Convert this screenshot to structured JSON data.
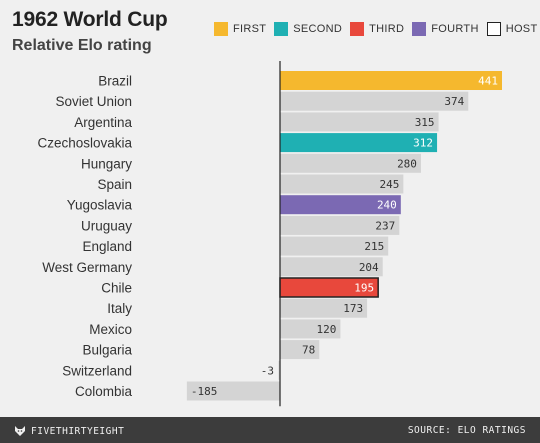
{
  "header": {
    "title": "1962 World Cup",
    "subtitle": "Relative Elo rating"
  },
  "legend": [
    {
      "label": "FIRST",
      "color": "#f5b82e",
      "outline": false
    },
    {
      "label": "SECOND",
      "color": "#1fb0b3",
      "outline": false
    },
    {
      "label": "THIRD",
      "color": "#e8483c",
      "outline": false
    },
    {
      "label": "FOURTH",
      "color": "#7b69b3",
      "outline": false
    },
    {
      "label": "HOST",
      "color": "#ffffff",
      "outline": true
    }
  ],
  "chart_data": {
    "type": "bar",
    "orientation": "horizontal",
    "title": "1962 World Cup",
    "subtitle": "Relative Elo rating",
    "categories": [
      "Brazil",
      "Soviet Union",
      "Argentina",
      "Czechoslovakia",
      "Hungary",
      "Spain",
      "Yugoslavia",
      "Uruguay",
      "England",
      "West Germany",
      "Chile",
      "Italy",
      "Mexico",
      "Bulgaria",
      "Switzerland",
      "Colombia"
    ],
    "values": [
      441,
      374,
      315,
      312,
      280,
      245,
      240,
      237,
      215,
      204,
      195,
      173,
      120,
      78,
      -3,
      -185
    ],
    "labels": [
      "441",
      "374",
      "315",
      "312",
      "280",
      "245",
      "240",
      "237",
      "215",
      "204",
      "195",
      "173",
      "120",
      "78",
      "-3",
      "-185"
    ],
    "highlight": {
      "Brazil": "FIRST",
      "Czechoslovakia": "SECOND",
      "Chile": "THIRD",
      "Yugoslavia": "FOURTH"
    },
    "host": "Chile",
    "colors": {
      "default": "#d4d4d4",
      "FIRST": "#f5b82e",
      "SECOND": "#1fb0b3",
      "THIRD": "#e8483c",
      "FOURTH": "#7b69b3"
    }
  },
  "footer": {
    "brand": "FIVETHIRTYEIGHT",
    "source": "SOURCE: ELO RATINGS"
  }
}
